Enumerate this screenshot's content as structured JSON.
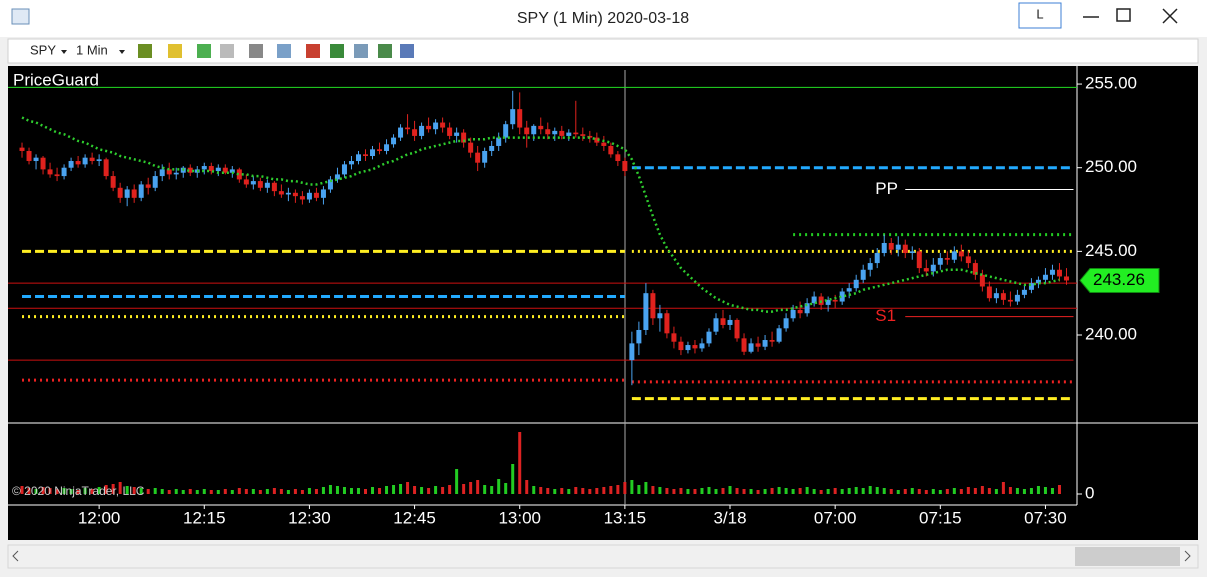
{
  "window": {
    "title": "SPY (1 Min)  2020-03-18",
    "toolbar": [
      "SPY",
      "1 Min"
    ],
    "button": "L"
  },
  "chart_data": {
    "type": "candlestick",
    "indicator": "PriceGuard",
    "watermark": "© 2020 NinjaTrader, LLC",
    "up_color": "#4aa3f0",
    "down_color": "#e0221e",
    "ma_color": "#2ecc2e",
    "xlim": [
      -2,
      150.5
    ],
    "ylim": [
      234.8,
      255.96
    ],
    "xticks": [
      {
        "value": 11,
        "label": "12:00"
      },
      {
        "value": 26,
        "label": "12:15"
      },
      {
        "value": 41,
        "label": "12:30"
      },
      {
        "value": 56,
        "label": "12:45"
      },
      {
        "value": 71,
        "label": "13:00"
      },
      {
        "value": 86,
        "label": "13:15"
      },
      {
        "value": 101,
        "label": "3/18"
      },
      {
        "value": 116,
        "label": "07:00"
      },
      {
        "value": 131,
        "label": "07:15"
      },
      {
        "value": 146,
        "label": "07:30"
      }
    ],
    "yticks": [
      {
        "value": 240,
        "label": "240.00"
      },
      {
        "value": 245,
        "label": "245.00"
      },
      {
        "value": 250,
        "label": "250.00"
      },
      {
        "value": 255,
        "label": "255.00"
      }
    ],
    "ohlc": [
      [
        251.2,
        251.5,
        250.6,
        251.0
      ],
      [
        251.0,
        251.2,
        250.2,
        250.4
      ],
      [
        250.4,
        250.8,
        249.9,
        250.6
      ],
      [
        250.6,
        250.7,
        249.6,
        249.9
      ],
      [
        249.9,
        250.3,
        249.4,
        249.6
      ],
      [
        249.6,
        250.0,
        249.2,
        249.5
      ],
      [
        249.5,
        250.2,
        249.3,
        250.0
      ],
      [
        250.0,
        250.6,
        249.8,
        250.4
      ],
      [
        250.4,
        250.7,
        250.0,
        250.2
      ],
      [
        250.2,
        250.8,
        250.0,
        250.6
      ],
      [
        250.6,
        250.9,
        250.2,
        250.4
      ],
      [
        250.4,
        250.8,
        250.1,
        250.5
      ],
      [
        250.5,
        250.6,
        249.3,
        249.5
      ],
      [
        249.5,
        249.8,
        248.6,
        248.8
      ],
      [
        248.8,
        249.1,
        247.9,
        248.2
      ],
      [
        248.2,
        248.9,
        247.7,
        248.7
      ],
      [
        248.7,
        249.0,
        247.9,
        248.2
      ],
      [
        248.2,
        249.2,
        248.0,
        249.0
      ],
      [
        249.0,
        249.4,
        248.4,
        248.8
      ],
      [
        248.8,
        249.8,
        248.6,
        249.5
      ],
      [
        249.5,
        250.2,
        249.2,
        249.9
      ],
      [
        249.9,
        250.3,
        249.3,
        249.6
      ],
      [
        249.6,
        250.0,
        249.3,
        249.7
      ],
      [
        249.7,
        250.1,
        249.4,
        250.0
      ],
      [
        250.0,
        250.2,
        249.5,
        249.7
      ],
      [
        249.7,
        250.1,
        249.4,
        249.9
      ],
      [
        249.9,
        250.3,
        249.6,
        250.1
      ],
      [
        250.1,
        250.3,
        249.6,
        249.8
      ],
      [
        249.8,
        250.2,
        249.5,
        250.0
      ],
      [
        250.0,
        250.2,
        249.6,
        249.7
      ],
      [
        249.7,
        250.1,
        249.4,
        249.9
      ],
      [
        249.9,
        250.0,
        249.1,
        249.3
      ],
      [
        249.3,
        249.6,
        248.8,
        249.0
      ],
      [
        249.0,
        249.5,
        248.7,
        249.2
      ],
      [
        249.2,
        249.4,
        248.6,
        248.8
      ],
      [
        248.8,
        249.3,
        248.5,
        249.1
      ],
      [
        249.1,
        249.2,
        248.3,
        248.6
      ],
      [
        248.6,
        249.0,
        248.2,
        248.4
      ],
      [
        248.4,
        248.8,
        248.0,
        248.5
      ],
      [
        248.5,
        248.7,
        247.9,
        248.3
      ],
      [
        248.3,
        248.6,
        247.8,
        248.1
      ],
      [
        248.1,
        248.7,
        247.9,
        248.5
      ],
      [
        248.5,
        248.8,
        248.0,
        248.2
      ],
      [
        248.2,
        248.9,
        247.8,
        248.7
      ],
      [
        248.7,
        249.5,
        248.5,
        249.3
      ],
      [
        249.3,
        250.0,
        249.1,
        249.6
      ],
      [
        249.6,
        250.4,
        249.4,
        250.2
      ],
      [
        250.2,
        250.7,
        249.9,
        250.4
      ],
      [
        250.4,
        251.0,
        250.2,
        250.8
      ],
      [
        250.8,
        251.1,
        250.4,
        250.7
      ],
      [
        250.7,
        251.3,
        250.5,
        251.1
      ],
      [
        251.1,
        251.5,
        250.8,
        251.0
      ],
      [
        251.0,
        251.7,
        250.8,
        251.4
      ],
      [
        251.4,
        252.0,
        251.2,
        251.8
      ],
      [
        251.8,
        252.6,
        251.6,
        252.4
      ],
      [
        252.4,
        253.2,
        252.0,
        252.3
      ],
      [
        252.3,
        252.8,
        251.6,
        251.9
      ],
      [
        251.9,
        252.7,
        251.7,
        252.5
      ],
      [
        252.5,
        253.0,
        252.1,
        252.3
      ],
      [
        252.3,
        252.9,
        252.0,
        252.7
      ],
      [
        252.7,
        253.0,
        252.1,
        252.4
      ],
      [
        252.4,
        252.7,
        251.7,
        251.9
      ],
      [
        251.9,
        252.4,
        251.5,
        252.1
      ],
      [
        252.1,
        252.3,
        251.2,
        251.5
      ],
      [
        251.5,
        251.8,
        250.6,
        250.9
      ],
      [
        250.9,
        251.3,
        249.8,
        250.3
      ],
      [
        250.3,
        251.2,
        250.0,
        251.0
      ],
      [
        251.0,
        251.6,
        250.7,
        251.3
      ],
      [
        251.3,
        252.1,
        251.0,
        251.8
      ],
      [
        251.8,
        252.8,
        251.5,
        252.6
      ],
      [
        252.6,
        254.6,
        252.3,
        253.5
      ],
      [
        253.5,
        254.5,
        252.0,
        252.4
      ],
      [
        252.4,
        252.8,
        251.2,
        252.0
      ],
      [
        252.0,
        252.6,
        251.6,
        252.5
      ],
      [
        252.5,
        253.0,
        252.0,
        252.3
      ],
      [
        252.3,
        252.7,
        251.7,
        252.0
      ],
      [
        252.0,
        252.4,
        251.6,
        252.2
      ],
      [
        252.2,
        252.5,
        251.7,
        251.9
      ],
      [
        251.9,
        252.3,
        251.6,
        252.1
      ],
      [
        252.1,
        254.0,
        251.8,
        252.0
      ],
      [
        252.0,
        252.4,
        251.6,
        251.9
      ],
      [
        251.9,
        252.2,
        251.5,
        251.8
      ],
      [
        251.8,
        252.1,
        251.3,
        251.5
      ],
      [
        251.5,
        251.9,
        251.0,
        251.3
      ],
      [
        251.3,
        251.5,
        250.6,
        250.8
      ],
      [
        250.8,
        251.0,
        250.1,
        250.4
      ],
      [
        250.4,
        250.6,
        249.5,
        249.8
      ],
      [
        238.5,
        240.2,
        237.0,
        239.5
      ],
      [
        239.5,
        240.8,
        238.8,
        240.3
      ],
      [
        240.3,
        243.1,
        240.0,
        242.5
      ],
      [
        242.5,
        242.7,
        240.6,
        241.0
      ],
      [
        241.0,
        241.8,
        240.2,
        241.3
      ],
      [
        241.3,
        241.5,
        239.8,
        240.1
      ],
      [
        240.1,
        240.5,
        239.2,
        239.6
      ],
      [
        239.6,
        239.9,
        238.8,
        239.1
      ],
      [
        239.1,
        239.6,
        238.9,
        239.4
      ],
      [
        239.4,
        239.7,
        238.9,
        239.2
      ],
      [
        239.2,
        239.8,
        239.0,
        239.5
      ],
      [
        239.5,
        240.4,
        239.3,
        240.2
      ],
      [
        240.2,
        241.3,
        240.0,
        241.0
      ],
      [
        241.0,
        241.5,
        240.4,
        240.6
      ],
      [
        240.6,
        241.2,
        240.3,
        240.9
      ],
      [
        240.9,
        241.0,
        239.6,
        239.8
      ],
      [
        239.8,
        240.1,
        238.8,
        239.0
      ],
      [
        239.0,
        239.8,
        238.9,
        239.5
      ],
      [
        239.5,
        239.9,
        239.0,
        239.3
      ],
      [
        239.3,
        240.0,
        239.1,
        239.7
      ],
      [
        239.7,
        240.2,
        239.3,
        239.6
      ],
      [
        239.6,
        240.6,
        239.5,
        240.4
      ],
      [
        240.4,
        241.3,
        240.2,
        241.0
      ],
      [
        241.0,
        241.8,
        240.8,
        241.5
      ],
      [
        241.5,
        242.0,
        241.0,
        241.3
      ],
      [
        241.3,
        242.2,
        241.1,
        241.9
      ],
      [
        241.9,
        242.6,
        241.7,
        242.3
      ],
      [
        242.3,
        242.5,
        241.5,
        241.8
      ],
      [
        241.8,
        242.3,
        241.4,
        242.1
      ],
      [
        242.1,
        242.4,
        241.6,
        242.0
      ],
      [
        242.0,
        242.8,
        241.8,
        242.6
      ],
      [
        242.6,
        243.1,
        242.2,
        242.8
      ],
      [
        242.8,
        243.6,
        242.6,
        243.3
      ],
      [
        243.3,
        244.2,
        243.1,
        243.9
      ],
      [
        243.9,
        244.6,
        243.5,
        244.3
      ],
      [
        244.3,
        245.2,
        244.0,
        244.9
      ],
      [
        244.9,
        246.0,
        244.7,
        245.5
      ],
      [
        245.5,
        245.8,
        244.8,
        245.1
      ],
      [
        245.1,
        245.9,
        244.7,
        245.4
      ],
      [
        245.4,
        245.7,
        244.6,
        244.9
      ],
      [
        244.9,
        245.3,
        244.5,
        245.0
      ],
      [
        245.0,
        245.2,
        243.7,
        244.0
      ],
      [
        244.0,
        244.5,
        243.5,
        243.8
      ],
      [
        243.8,
        244.6,
        243.5,
        244.2
      ],
      [
        244.2,
        244.9,
        243.9,
        244.6
      ],
      [
        244.6,
        245.0,
        244.2,
        244.5
      ],
      [
        244.5,
        245.3,
        244.3,
        245.0
      ],
      [
        245.0,
        245.4,
        244.4,
        244.7
      ],
      [
        244.7,
        245.0,
        244.0,
        244.3
      ],
      [
        244.3,
        244.5,
        243.3,
        243.6
      ],
      [
        243.6,
        243.9,
        242.6,
        242.9
      ],
      [
        242.9,
        243.2,
        242.0,
        242.2
      ],
      [
        242.2,
        242.8,
        241.9,
        242.5
      ],
      [
        242.5,
        242.7,
        241.8,
        242.1
      ],
      [
        242.1,
        242.6,
        241.7,
        242.0
      ],
      [
        242.0,
        242.7,
        241.8,
        242.4
      ],
      [
        242.4,
        243.0,
        242.2,
        242.7
      ],
      [
        242.7,
        243.4,
        242.5,
        243.1
      ],
      [
        243.1,
        243.5,
        242.8,
        243.3
      ],
      [
        243.3,
        244.0,
        243.1,
        243.6
      ],
      [
        243.6,
        244.2,
        243.3,
        243.9
      ],
      [
        243.9,
        244.3,
        243.2,
        243.5
      ],
      [
        243.5,
        244.0,
        243.0,
        243.26
      ]
    ],
    "ma": [
      253.0,
      252.8,
      252.7,
      252.5,
      252.3,
      252.1,
      252.0,
      251.8,
      251.6,
      251.5,
      251.3,
      251.1,
      251.0,
      250.9,
      250.7,
      250.6,
      250.5,
      250.4,
      250.3,
      250.1,
      250.0,
      249.9,
      249.9,
      249.9,
      249.8,
      249.8,
      249.8,
      249.8,
      249.7,
      249.7,
      249.7,
      249.6,
      249.6,
      249.5,
      249.5,
      249.4,
      249.3,
      249.3,
      249.2,
      249.2,
      249.1,
      249.0,
      249.0,
      249.1,
      249.2,
      249.3,
      249.4,
      249.5,
      249.7,
      249.8,
      249.9,
      250.1,
      250.3,
      250.4,
      250.6,
      250.8,
      250.9,
      251.1,
      251.2,
      251.3,
      251.4,
      251.5,
      251.6,
      251.6,
      251.7,
      251.7,
      251.7,
      251.8,
      251.8,
      251.8,
      251.8,
      251.8,
      251.8,
      251.8,
      251.8,
      251.8,
      251.8,
      251.8,
      251.8,
      251.8,
      251.8,
      251.8,
      251.7,
      251.6,
      251.5,
      251.3,
      251.1,
      250.5,
      249.5,
      248.3,
      247.1,
      246.0,
      245.2,
      244.6,
      244.0,
      243.6,
      243.2,
      242.8,
      242.5,
      242.2,
      242.0,
      241.8,
      241.7,
      241.6,
      241.5,
      241.5,
      241.4,
      241.4,
      241.5,
      241.5,
      241.6,
      241.7,
      241.8,
      241.9,
      242.0,
      242.1,
      242.2,
      242.3,
      242.4,
      242.5,
      242.7,
      242.8,
      242.9,
      243.0,
      243.1,
      243.2,
      243.3,
      243.4,
      243.5,
      243.6,
      243.7,
      243.8,
      243.9,
      243.9,
      243.9,
      243.8,
      243.7,
      243.6,
      243.5,
      243.4,
      243.3,
      243.2,
      243.1,
      243.0,
      243.0,
      243.1,
      243.1,
      243.2,
      243.3
    ],
    "levels": [
      {
        "value": 254.8,
        "start": -2,
        "end": 150.5,
        "color": "#22dd22",
        "style": "solid"
      },
      {
        "value": 245.0,
        "start": 0,
        "end": 86,
        "color": "#ffee22",
        "style": "dashed"
      },
      {
        "value": 242.3,
        "start": 0,
        "end": 86,
        "color": "#22aaff",
        "style": "dashed"
      },
      {
        "value": 241.1,
        "start": 0,
        "end": 86,
        "color": "#ffee22",
        "style": "dotted"
      },
      {
        "value": 237.3,
        "start": 0,
        "end": 86,
        "color": "#ee2222",
        "style": "dotted"
      },
      {
        "value": 250.0,
        "start": 87,
        "end": 150,
        "color": "#22aaff",
        "style": "dashed"
      },
      {
        "value": 236.2,
        "start": 87,
        "end": 150,
        "color": "#ffee22",
        "style": "dashed"
      },
      {
        "value": 245.0,
        "start": 87,
        "end": 150,
        "color": "#ffee22",
        "style": "dotted"
      },
      {
        "value": 237.2,
        "start": 87,
        "end": 150,
        "color": "#ee2222",
        "style": "dotted"
      },
      {
        "value": 243.1,
        "start": -2,
        "end": 150.5,
        "color": "#cc1111",
        "style": "solid"
      },
      {
        "value": 241.6,
        "start": -2,
        "end": 150.5,
        "color": "#cc1111",
        "style": "solid"
      },
      {
        "value": 238.5,
        "start": -2,
        "end": 150,
        "color": "#cc1111",
        "style": "solid"
      },
      {
        "value": 246.0,
        "start": 110,
        "end": 150,
        "color": "#22cc22",
        "style": "dotted"
      },
      {
        "value": 248.7,
        "start": 126,
        "end": 150,
        "color": "#ffffff",
        "style": "solid",
        "label": "PP"
      },
      {
        "value": 241.1,
        "start": 126,
        "end": 150,
        "color": "#ee2222",
        "style": "solid",
        "label": "S1"
      }
    ],
    "volume": {
      "ylim": [
        0,
        70
      ],
      "yticks": [
        0
      ],
      "values": [
        8,
        6,
        5,
        7,
        6,
        5,
        6,
        5,
        4,
        6,
        5,
        7,
        9,
        10,
        12,
        8,
        7,
        6,
        5,
        6,
        5,
        4,
        5,
        4,
        5,
        4,
        5,
        4,
        4,
        5,
        4,
        6,
        5,
        5,
        4,
        5,
        6,
        5,
        4,
        5,
        4,
        6,
        5,
        7,
        9,
        8,
        7,
        6,
        6,
        5,
        7,
        6,
        8,
        9,
        10,
        12,
        8,
        7,
        6,
        8,
        7,
        9,
        25,
        10,
        12,
        14,
        9,
        8,
        15,
        11,
        30,
        62,
        14,
        8,
        7,
        6,
        5,
        6,
        5,
        7,
        6,
        5,
        6,
        7,
        8,
        9,
        12,
        14,
        9,
        12,
        8,
        7,
        6,
        5,
        6,
        5,
        5,
        6,
        7,
        5,
        6,
        8,
        6,
        5,
        5,
        4,
        5,
        6,
        7,
        6,
        5,
        6,
        7,
        5,
        4,
        5,
        6,
        5,
        6,
        7,
        6,
        8,
        7,
        6,
        5,
        4,
        5,
        6,
        5,
        4,
        5,
        4,
        5,
        6,
        5,
        7,
        6,
        8,
        6,
        5,
        12,
        7,
        6,
        5,
        6,
        8,
        7,
        6,
        9
      ]
    }
  }
}
